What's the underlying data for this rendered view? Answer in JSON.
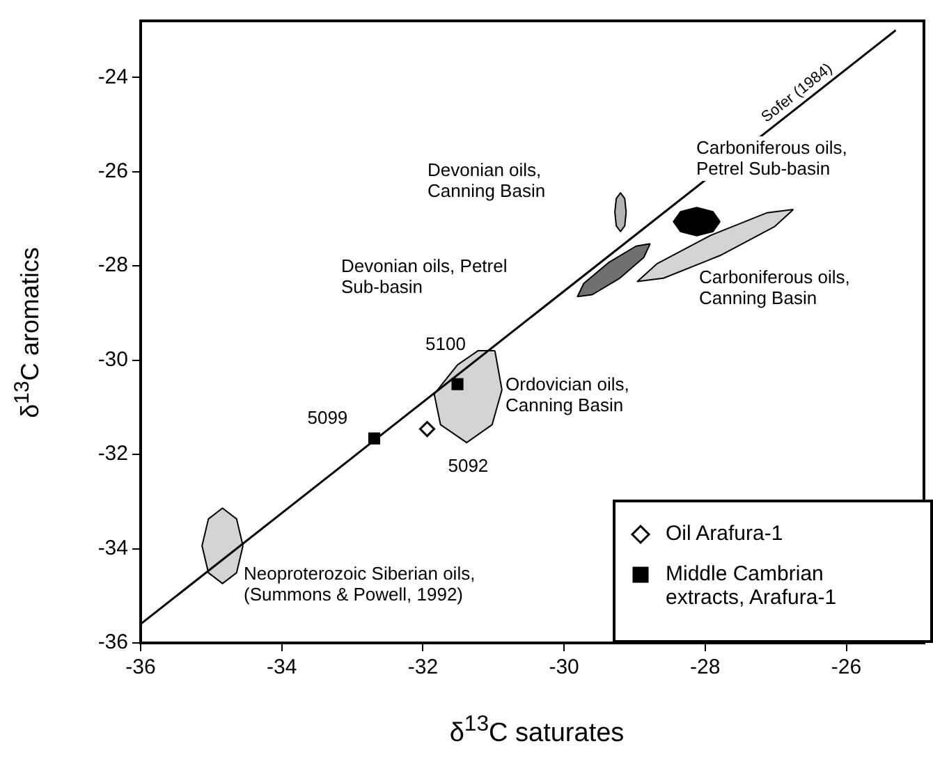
{
  "chart_data": {
    "type": "scatter",
    "xlabel": "δ$^{13}$C saturates",
    "ylabel": "δ$^{13}$C aromatics",
    "xlim": [
      -36,
      -24.9
    ],
    "ylim": [
      -36,
      -22.8
    ],
    "xticks": [
      -36,
      -34,
      -32,
      -30,
      -28,
      -26
    ],
    "yticks": [
      -36,
      -34,
      -32,
      -30,
      -28,
      -26,
      -24
    ],
    "grid": false,
    "legend": "bottom right",
    "series": [
      {
        "type": "line",
        "marker": "none",
        "line_style": "solid",
        "color": "#000000",
        "x": [
          -36,
          -25.3
        ],
        "values": [
          -35.6,
          -23.0
        ]
      },
      {
        "type": "area",
        "marker": "none",
        "color": "#d4d4d4",
        "x": [
          -34.55,
          -34.64,
          -34.84,
          -35.04,
          -35.13,
          -35.04,
          -34.84,
          -34.64
        ],
        "values": [
          -33.94,
          -33.37,
          -33.14,
          -33.37,
          -33.94,
          -34.51,
          -34.74,
          -34.51
        ]
      },
      {
        "type": "area",
        "marker": "none",
        "color": "#d4d4d4",
        "x": [
          -30.98,
          -30.88,
          -31.02,
          -31.38,
          -31.75,
          -31.84,
          -31.51,
          -31.22
        ],
        "values": [
          -29.8,
          -30.63,
          -31.37,
          -31.75,
          -31.37,
          -30.72,
          -30.1,
          -29.8
        ]
      },
      {
        "type": "area",
        "marker": "none",
        "color": "#b4b4b4",
        "x": [
          -29.12,
          -29.14,
          -29.2,
          -29.26,
          -29.28,
          -29.26,
          -29.2,
          -29.14
        ],
        "values": [
          -26.86,
          -26.57,
          -26.45,
          -26.57,
          -26.86,
          -27.15,
          -27.27,
          -27.15
        ]
      },
      {
        "type": "area",
        "marker": "none",
        "color": "#707070",
        "x": [
          -28.78,
          -28.87,
          -29.21,
          -29.6,
          -29.81,
          -29.72,
          -29.37,
          -28.98
        ],
        "values": [
          -27.53,
          -27.82,
          -28.26,
          -28.61,
          -28.65,
          -28.37,
          -27.93,
          -27.58
        ]
      },
      {
        "type": "area",
        "marker": "none",
        "color": "#000000",
        "x": [
          -27.79,
          -27.89,
          -28.12,
          -28.35,
          -28.45,
          -28.35,
          -28.12,
          -27.89
        ],
        "values": [
          -27.06,
          -26.85,
          -26.76,
          -26.85,
          -27.06,
          -27.27,
          -27.36,
          -27.27
        ]
      },
      {
        "type": "area",
        "marker": "none",
        "color": "#d4d4d4",
        "x": [
          -26.75,
          -27.02,
          -27.79,
          -28.59,
          -28.96,
          -28.68,
          -27.92,
          -27.12
        ],
        "values": [
          -26.8,
          -27.17,
          -27.78,
          -28.26,
          -28.33,
          -27.95,
          -27.35,
          -26.87
        ]
      },
      {
        "type": "scatter",
        "name": "Oil Arafura-1",
        "marker": "diamond",
        "color": "#000000",
        "x": [
          -31.94
        ],
        "values": [
          -31.46
        ]
      },
      {
        "type": "scatter",
        "name": "Middle Cambrian extracts, Arafura-1",
        "marker": "square",
        "color": "#000000",
        "x": [
          -32.69,
          -31.51
        ],
        "values": [
          -31.66,
          -30.51
        ]
      }
    ],
    "annotations": [
      {
        "text": "Sofer (1984)",
        "x": -26.6,
        "y": -24.52
      },
      "Devonian oils,\nCanning Basin",
      "Devonian oils, Petrel\nSub-basin",
      "Carboniferous oils,\nPetrel Sub-basin",
      "Carboniferous oils,\nCanning Basin",
      "Ordovician oils,\nCanning Basin",
      "Neoproterozoic Siberian oils,\n(Summons & Powell, 1992)",
      {
        "text": "5099",
        "x": -32.69,
        "y": -31.66
      },
      {
        "text": "5100",
        "x": -31.51,
        "y": -30.51
      },
      {
        "text": "5092",
        "x": -31.94,
        "y": -31.46
      }
    ]
  }
}
